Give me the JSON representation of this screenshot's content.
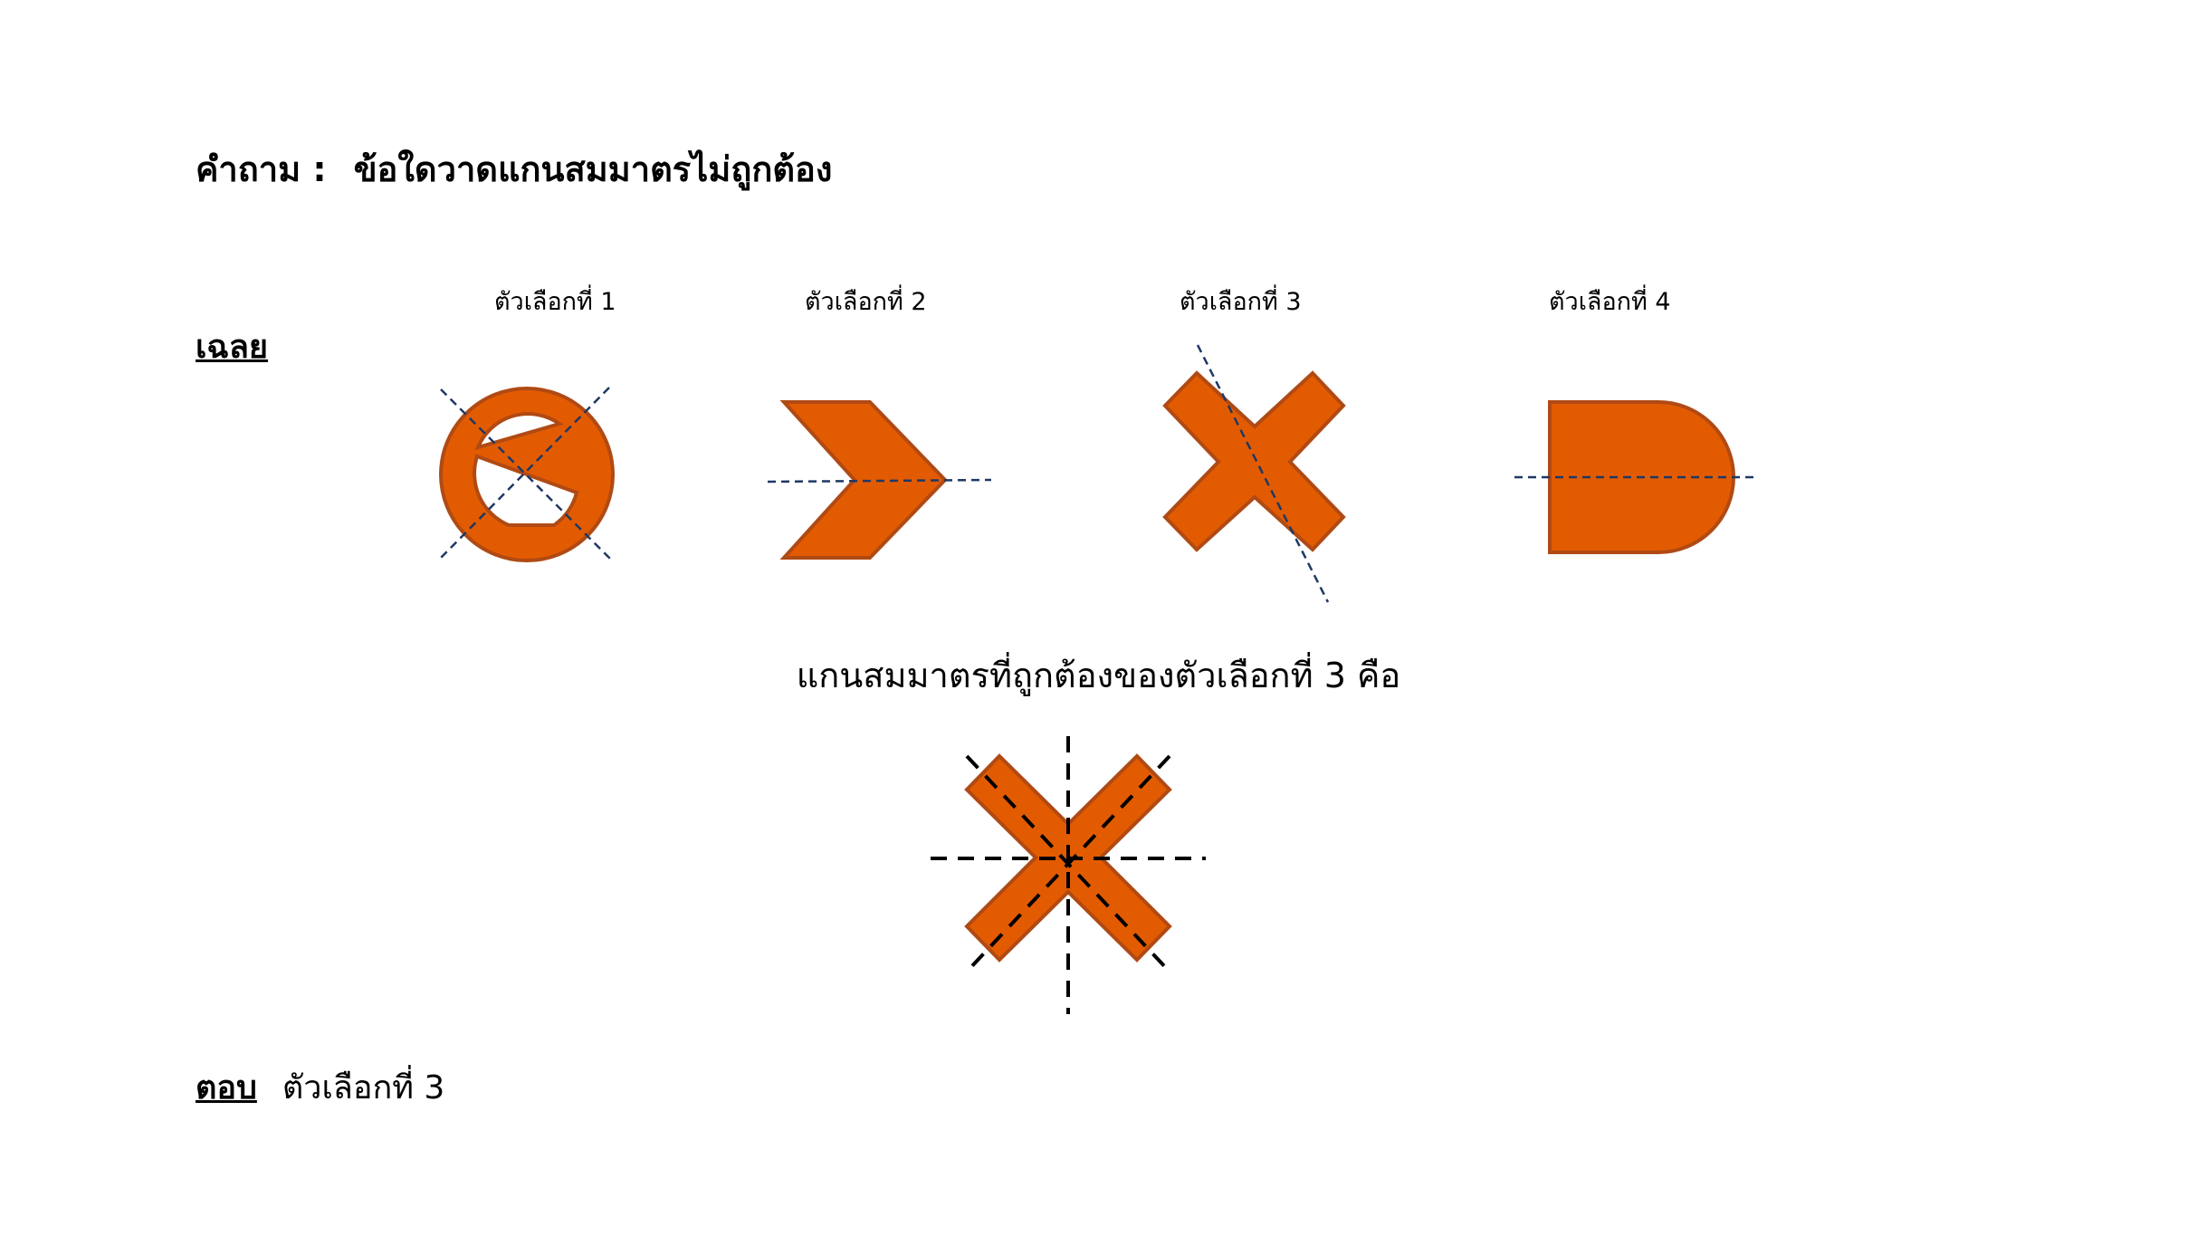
{
  "question": {
    "label": "คำถาม :",
    "text": "ข้อใดวาดแกนสมมาตรไม่ถูกต้อง"
  },
  "answer_heading": "เฉลย",
  "options": [
    {
      "label": "ตัวเลือกที่ 1",
      "shape": "prohibition-sign-icon"
    },
    {
      "label": "ตัวเลือกที่ 2",
      "shape": "chevron-arrow-icon"
    },
    {
      "label": "ตัวเลือกที่ 3",
      "shape": "x-cross-icon"
    },
    {
      "label": "ตัวเลือกที่ 4",
      "shape": "d-shape-icon"
    }
  ],
  "correct_caption": "แกนสมมาตรที่ถูกต้องของตัวเลือกที่ 3 คือ",
  "final_answer": {
    "label": "ตอบ",
    "text": "ตัวเลือกที่ 3"
  },
  "colors": {
    "shape_fill": "#E35B00",
    "shape_stroke": "#B04A14",
    "axis_line_options": "#1F3864",
    "axis_line_solution": "#000000",
    "text": "#000000"
  }
}
